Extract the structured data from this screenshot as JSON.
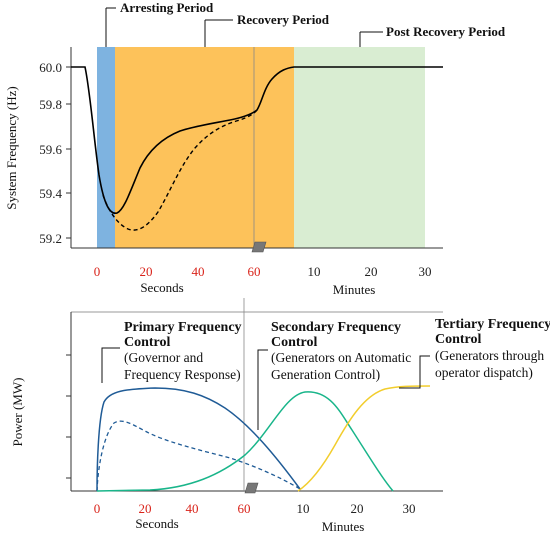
{
  "chart_data": [
    {
      "type": "line",
      "periods": [
        "Arresting Period",
        "Recovery Period",
        "Post Recovery Period"
      ],
      "period_colors": [
        "#7eb3e0",
        "#fdc25a",
        "#d9edd2"
      ],
      "ylabel": "System Frequency (Hz)",
      "yticks": [
        "60.0",
        "59.8",
        "59.6",
        "59.4",
        "59.2"
      ],
      "ylim": [
        59.1,
        60.05
      ],
      "x_seconds_ticks": [
        "0",
        "20",
        "40",
        "60"
      ],
      "x_seconds_label": "Seconds",
      "x_minutes_ticks": [
        "10",
        "20",
        "30"
      ],
      "x_minutes_label": "Minutes",
      "series": [
        {
          "style": "solid",
          "color": "#000000",
          "x_seconds": [
            -8,
            0,
            4,
            8,
            12,
            16,
            20,
            30,
            40,
            50,
            58
          ],
          "y": [
            60.0,
            59.79,
            59.46,
            59.31,
            59.37,
            59.5,
            59.57,
            59.64,
            59.68,
            59.71,
            59.735
          ],
          "x_minutes": [
            1.5,
            3,
            5,
            7
          ],
          "y_minutes": [
            59.78,
            59.9,
            59.99,
            60.0
          ]
        },
        {
          "style": "dashed",
          "color": "#000000",
          "x_seconds": [
            4,
            8,
            12,
            16,
            20,
            25,
            30,
            40,
            50,
            58
          ],
          "y": [
            59.46,
            59.32,
            59.26,
            59.24,
            59.26,
            59.32,
            59.43,
            59.6,
            59.69,
            59.735
          ]
        }
      ]
    },
    {
      "type": "line",
      "ylabel": "Power (MW)",
      "x_seconds_ticks": [
        "0",
        "20",
        "40",
        "60"
      ],
      "x_seconds_label": "Seconds",
      "x_minutes_ticks": [
        "10",
        "20",
        "30"
      ],
      "x_minutes_label": "Minutes",
      "controls": [
        {
          "title_1": "Primary Frequency",
          "title_2": "Control",
          "desc_1": "(Governor and",
          "desc_2": "Frequency Response)",
          "color": "#1f5b96"
        },
        {
          "title_1": "Secondary Frequency",
          "title_2": "Control",
          "desc_1": "(Generators on Automatic",
          "desc_2": "Generation Control)",
          "color": "#19b58a"
        },
        {
          "title_1": "Tertiary Frequency",
          "title_2": "Control",
          "desc_1": "(Generators through",
          "desc_2": "operator dispatch)",
          "color": "#f2cd2d"
        }
      ]
    }
  ]
}
